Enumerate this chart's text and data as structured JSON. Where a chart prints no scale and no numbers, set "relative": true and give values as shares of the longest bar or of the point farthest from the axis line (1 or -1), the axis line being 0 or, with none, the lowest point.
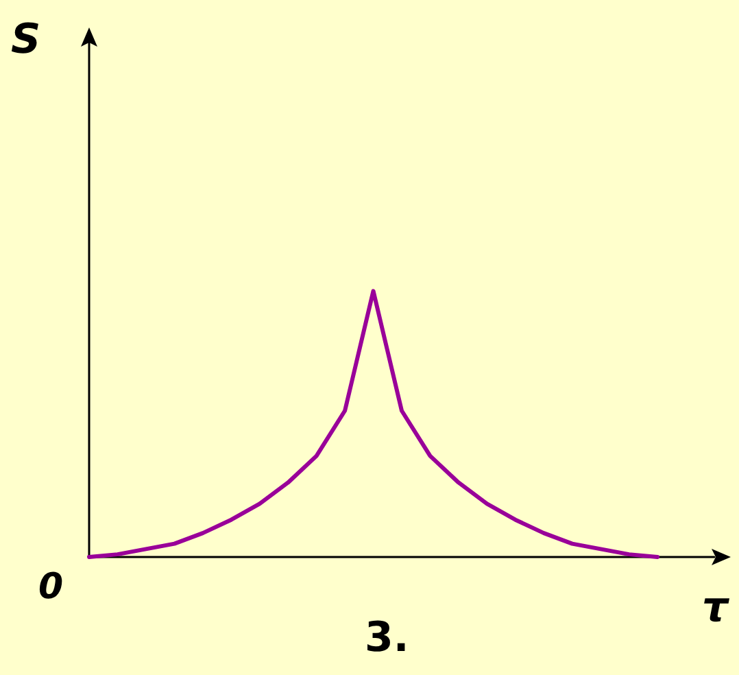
{
  "chart_data": {
    "type": "line",
    "relative": true,
    "xlabel": "τ",
    "annotations": [
      "S",
      "0",
      "3."
    ],
    "categories": [
      null,
      null,
      null,
      null,
      null,
      null,
      null,
      null,
      null,
      null,
      null,
      null,
      null,
      null,
      null,
      null,
      null,
      null,
      null,
      null,
      null,
      null,
      null
    ],
    "series": [
      {
        "color": "#990099",
        "values": [
          0,
          0.01,
          0.03,
          0.05,
          0.09,
          0.14,
          0.2,
          0.28,
          0.38,
          0.55,
          1,
          0.55,
          0.38,
          0.28,
          0.2,
          0.14,
          0.09,
          0.05,
          0.03,
          0.01,
          0,
          null,
          null
        ]
      }
    ],
    "grid": false,
    "marker": "none",
    "line_style": "solid"
  }
}
